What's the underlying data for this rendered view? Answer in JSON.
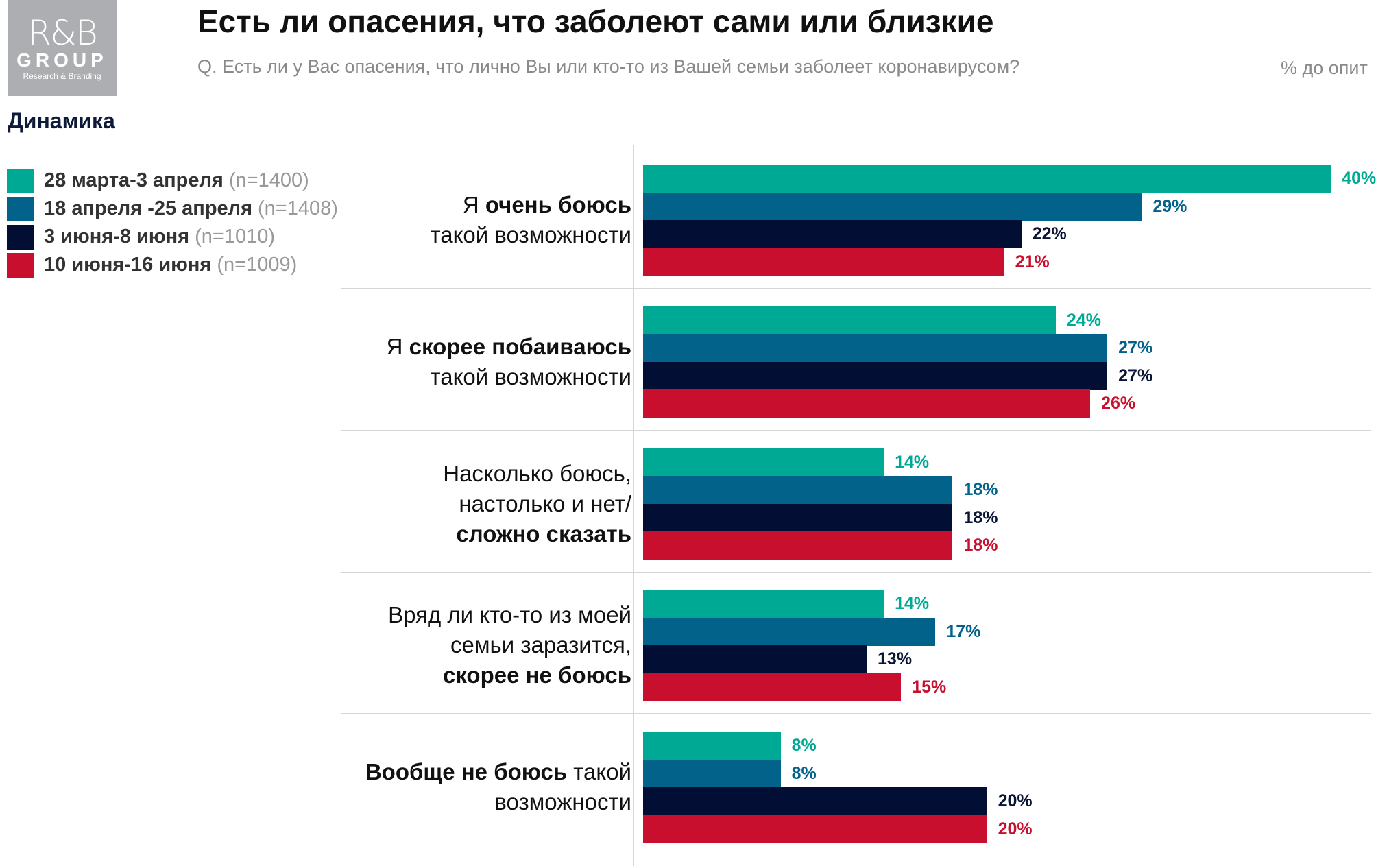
{
  "logo": {
    "line1": "R&B",
    "line2": "GROUP",
    "line3": "Research & Branding"
  },
  "header": {
    "title": "Есть ли опасения, что заболеют сами или близкие",
    "subtitle": "Q. Есть ли у Вас опасения, что лично Вы или кто-то из Вашей семьи заболеет коронавирусом?",
    "unit": "% до опит"
  },
  "legend_title": "Динамика",
  "colors": {
    "teal": "#00a994",
    "blue": "#03628a",
    "navy": "#020e33",
    "red": "#c8102e"
  },
  "chart_data": {
    "type": "bar",
    "orientation": "horizontal",
    "xlim": [
      0,
      40
    ],
    "grid": false,
    "legend_position": "top-left",
    "categories": [
      [
        [
          {
            "t": "Я ",
            "b": false
          },
          {
            "t": "очень боюсь",
            "b": true
          }
        ],
        [
          {
            "t": "такой возможности",
            "b": false
          }
        ]
      ],
      [
        [
          {
            "t": "Я ",
            "b": false
          },
          {
            "t": "скорее побаиваюсь",
            "b": true
          }
        ],
        [
          {
            "t": "такой возможности",
            "b": false
          }
        ]
      ],
      [
        [
          {
            "t": "Насколько боюсь,",
            "b": false
          }
        ],
        [
          {
            "t": "настолько и нет/",
            "b": false
          }
        ],
        [
          {
            "t": "сложно сказать",
            "b": true
          }
        ]
      ],
      [
        [
          {
            "t": "Вряд ли кто-то из моей",
            "b": false
          }
        ],
        [
          {
            "t": "семьи заразится,",
            "b": false
          }
        ],
        [
          {
            "t": "скорее не боюсь",
            "b": true
          }
        ]
      ],
      [
        [
          {
            "t": "Вообще не боюсь",
            "b": true
          },
          {
            "t": " такой",
            "b": false
          }
        ],
        [
          {
            "t": "возможности",
            "b": false
          }
        ]
      ]
    ],
    "series": [
      {
        "name": "28 марта-3 апреля",
        "n": "(n=1400)",
        "color": "#00a994",
        "label_color": "#00a994",
        "values": [
          40,
          24,
          14,
          14,
          8
        ],
        "labels": [
          "40%",
          "24%",
          "14%",
          "14%",
          "8%"
        ]
      },
      {
        "name": "18 апреля -25 апреля",
        "n": "(n=1408)",
        "color": "#03628a",
        "label_color": "#03628a",
        "values": [
          29,
          27,
          18,
          17,
          8
        ],
        "labels": [
          "29%",
          "27%",
          "18%",
          "17%",
          "8%"
        ]
      },
      {
        "name": "3 июня-8 июня",
        "n": "(n=1010)",
        "color": "#020e33",
        "label_color": "#0a1535",
        "values": [
          22,
          27,
          18,
          13,
          20
        ],
        "labels": [
          "22%",
          "27%",
          "18%",
          "13%",
          "20%"
        ]
      },
      {
        "name": "10 июня-16 июня",
        "n": "(n=1009)",
        "color": "#c8102e",
        "label_color": "#c8102e",
        "values": [
          21,
          26,
          18,
          15,
          20
        ],
        "labels": [
          "21%",
          "26%",
          "18%",
          "15%",
          "20%"
        ]
      }
    ]
  }
}
